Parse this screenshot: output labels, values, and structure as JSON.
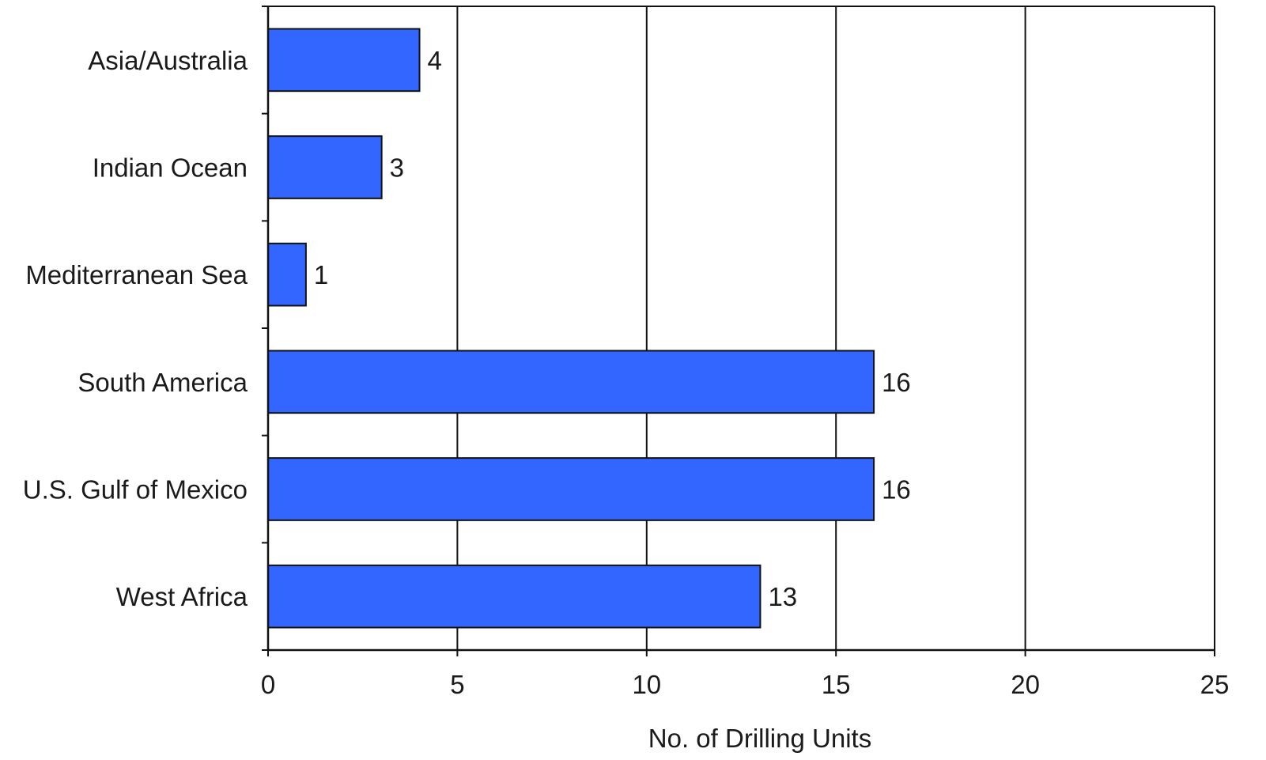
{
  "chart_data": {
    "type": "bar",
    "orientation": "horizontal",
    "categories": [
      "Asia/Australia",
      "Indian Ocean",
      "Mediterranean Sea",
      "South America",
      "U.S. Gulf of Mexico",
      "West Africa"
    ],
    "values": [
      4,
      3,
      1,
      16,
      16,
      13
    ],
    "data_labels": [
      "4",
      "3",
      "1",
      "16",
      "16",
      "13"
    ],
    "xlabel": "No. of Drilling Units",
    "ylabel": "",
    "title": "",
    "xlim": [
      0,
      25
    ],
    "xticks": [
      0,
      5,
      10,
      15,
      20,
      25
    ],
    "xtick_labels": [
      "0",
      "5",
      "10",
      "15",
      "20",
      "25"
    ],
    "grid": "vertical",
    "legend": "none",
    "colors": {
      "bar_fill": "#3366ff",
      "bar_stroke": "#111111",
      "grid": "#111111"
    }
  }
}
